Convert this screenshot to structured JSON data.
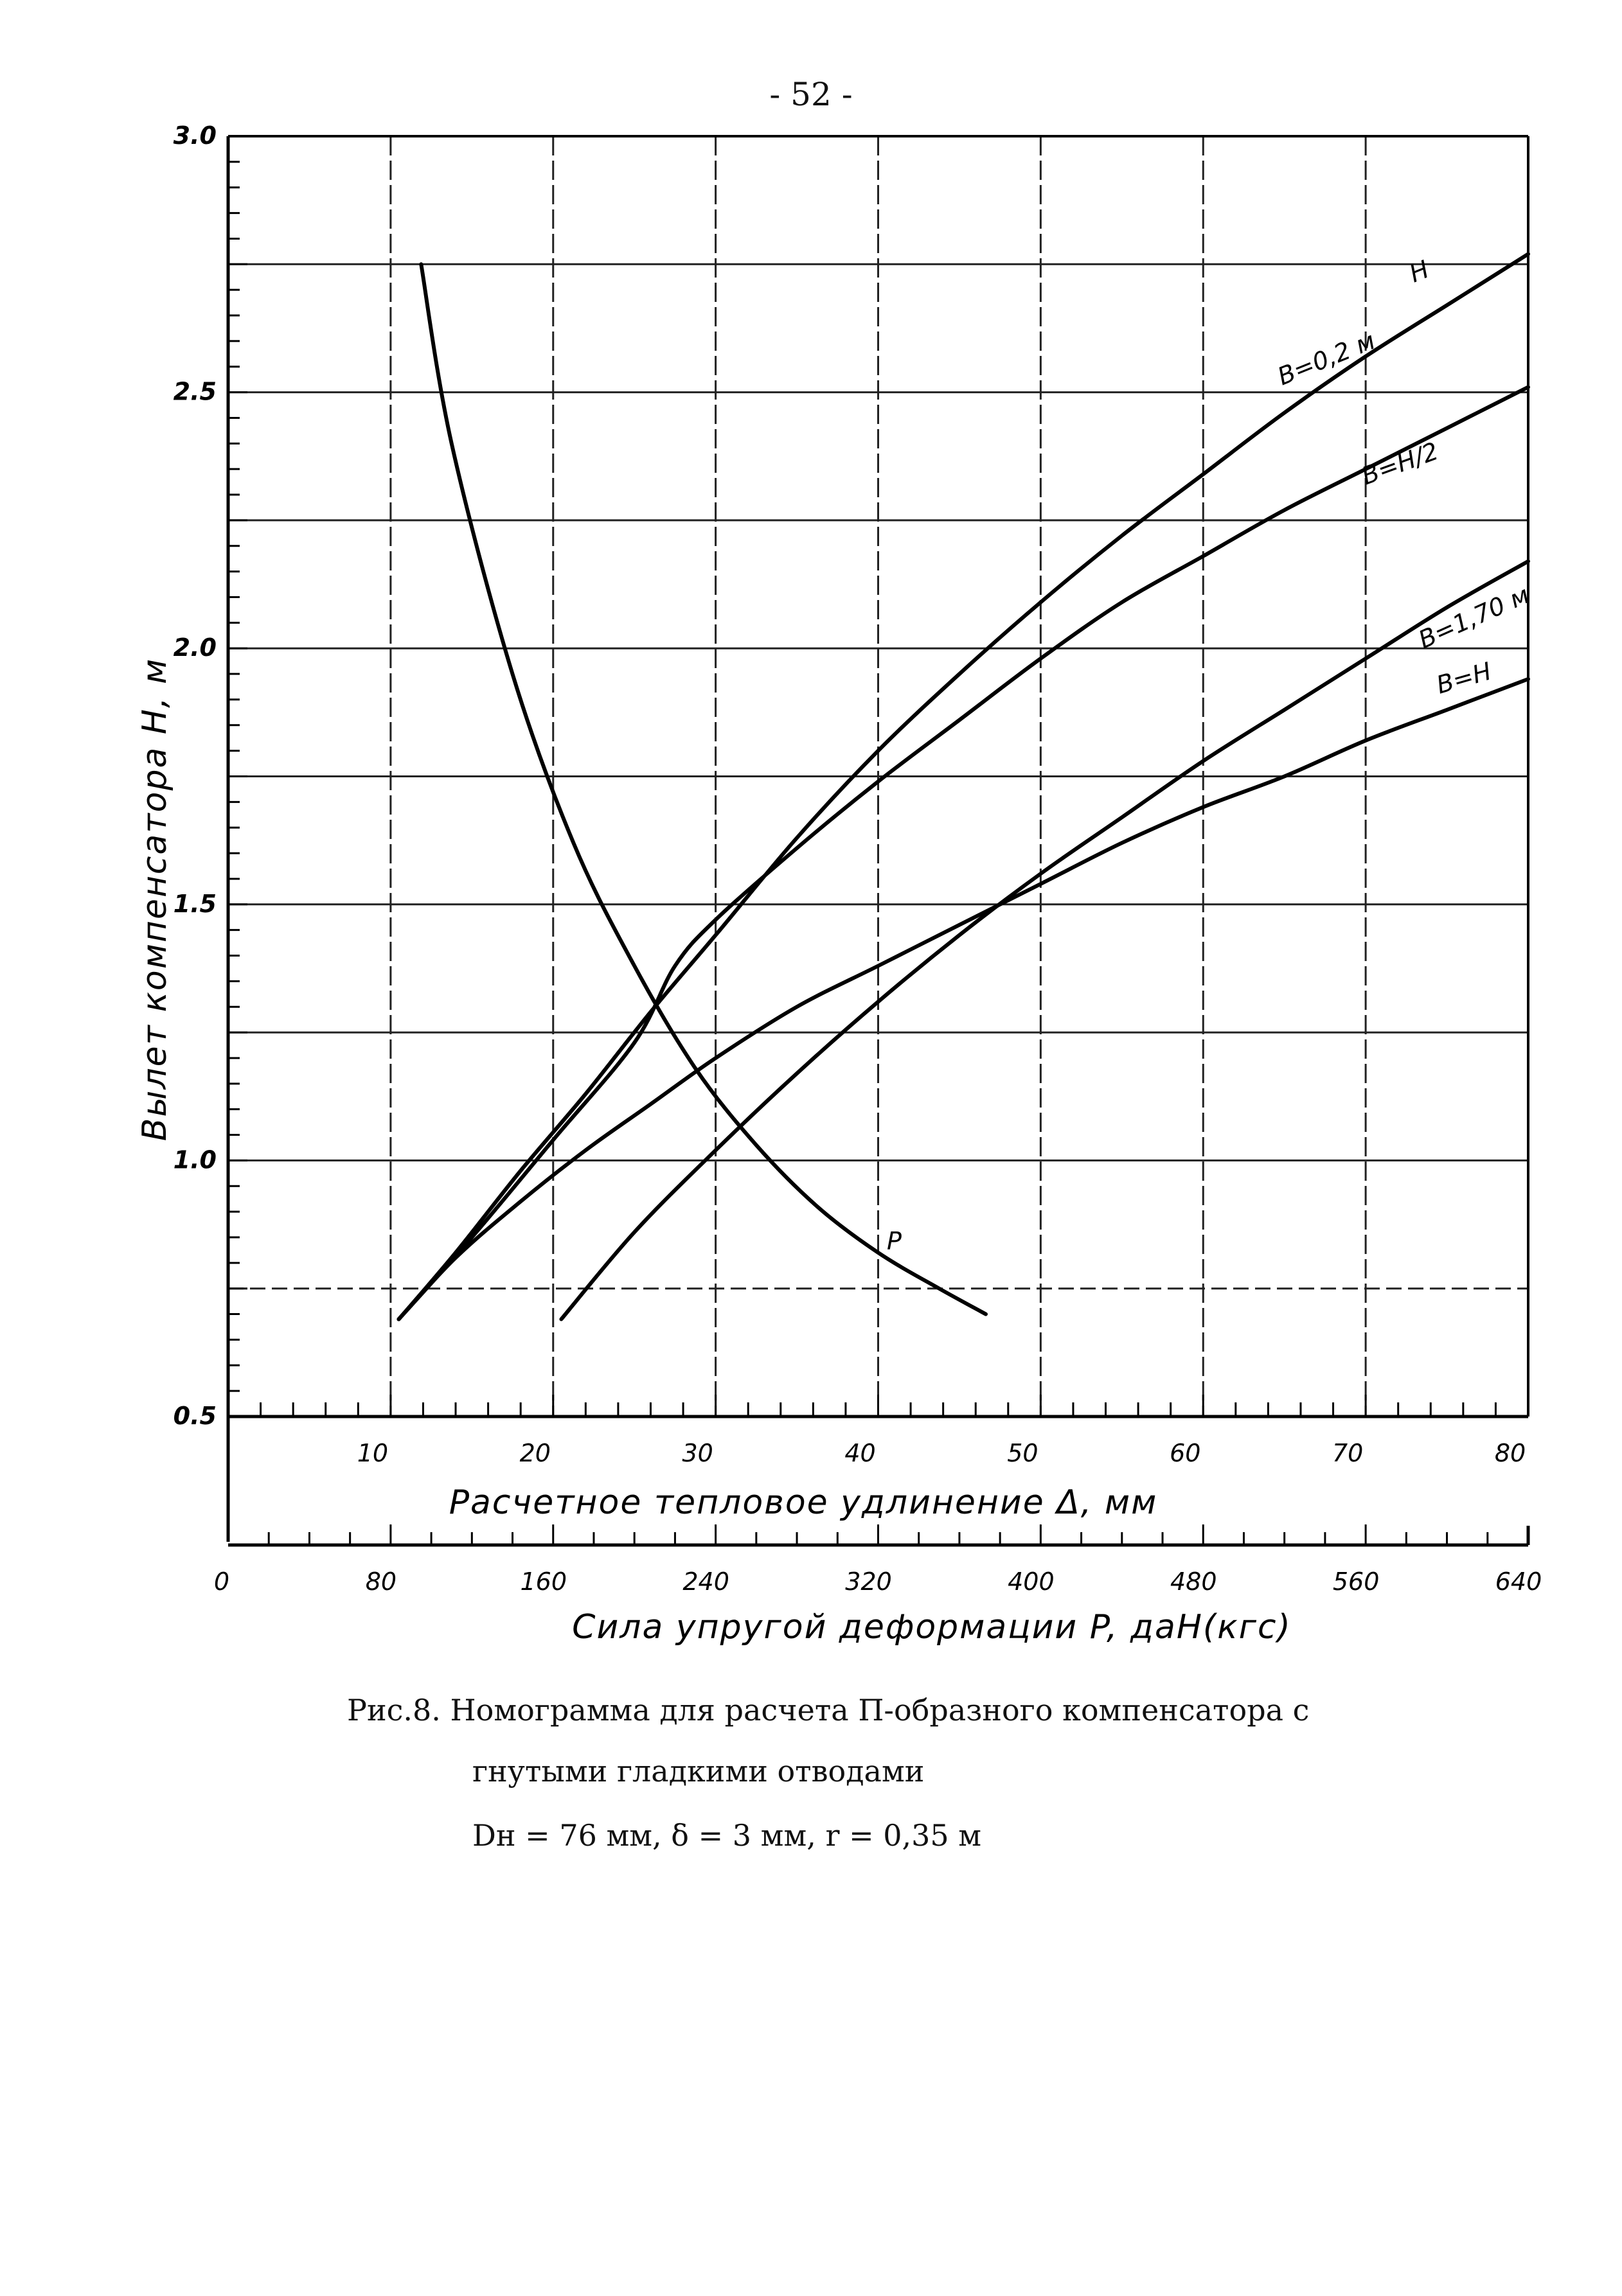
{
  "page_number": "- 52 -",
  "caption": {
    "line1": "Рис.8. Номограмма для расчета П-образного компенсатора с",
    "line2": "гнутыми гладкими отводами",
    "line3": "Dн = 76 мм,  δ = 3 мм,  r = 0,35 м"
  },
  "chart_data": {
    "type": "line",
    "ylabel": "Вылет компенсатора H, м",
    "xlabel": "Расчетное тепловое удлинение Δ, мм",
    "x2label": "Сила упругой деформации P, даН(кгс)",
    "ylim": [
      0.5,
      3.0
    ],
    "xlim": [
      0,
      80
    ],
    "x2lim": [
      0,
      640
    ],
    "y_ticks": [
      "0.5",
      "1.0",
      "1.5",
      "2.0",
      "2.5",
      "3.0"
    ],
    "x_ticks": [
      "10",
      "20",
      "30",
      "40",
      "50",
      "60",
      "70",
      "80"
    ],
    "x2_ticks": [
      "0",
      "80",
      "160",
      "240",
      "320",
      "400",
      "480",
      "560",
      "640"
    ],
    "grid": true,
    "series": [
      {
        "name": "B=0,2 м",
        "axis": "delta",
        "x": [
          10.5,
          14,
          18,
          22,
          26,
          30,
          35,
          40,
          45,
          50,
          55,
          60,
          65,
          70,
          75,
          80
        ],
        "y": [
          0.69,
          0.82,
          0.98,
          1.13,
          1.29,
          1.44,
          1.63,
          1.8,
          1.95,
          2.09,
          2.22,
          2.34,
          2.46,
          2.57,
          2.67,
          2.77
        ]
      },
      {
        "name": "B=H/2",
        "axis": "delta",
        "x": [
          10.5,
          15,
          20,
          25,
          27.5,
          30,
          35,
          40,
          45,
          50,
          55,
          60,
          65,
          70,
          75,
          80
        ],
        "y": [
          0.69,
          0.85,
          1.04,
          1.23,
          1.38,
          1.47,
          1.61,
          1.74,
          1.86,
          1.98,
          2.09,
          2.18,
          2.27,
          2.35,
          2.43,
          2.51
        ]
      },
      {
        "name": "B=1,70 м",
        "axis": "delta",
        "x": [
          20.5,
          25,
          30,
          35,
          40,
          45,
          50,
          55,
          60,
          65,
          70,
          75,
          80
        ],
        "y": [
          0.69,
          0.86,
          1.02,
          1.17,
          1.31,
          1.44,
          1.56,
          1.67,
          1.78,
          1.88,
          1.98,
          2.08,
          2.17
        ]
      },
      {
        "name": "B=H",
        "axis": "delta",
        "x": [
          10.5,
          14,
          18,
          22,
          26,
          30,
          35,
          40,
          45,
          50,
          55,
          60,
          65,
          70,
          75,
          80
        ],
        "y": [
          0.69,
          0.81,
          0.92,
          1.02,
          1.11,
          1.2,
          1.3,
          1.38,
          1.46,
          1.54,
          1.62,
          1.69,
          1.75,
          1.82,
          1.88,
          1.94
        ]
      },
      {
        "name": "P",
        "axis": "force",
        "x": [
          95,
          110,
          140,
          170,
          200,
          230,
          260,
          290,
          320,
          350,
          373
        ],
        "y": [
          2.75,
          2.4,
          1.95,
          1.62,
          1.38,
          1.18,
          1.03,
          0.91,
          0.82,
          0.75,
          0.7
        ]
      }
    ],
    "annotations": [
      "H",
      "B=0,2 м",
      "B=H/2",
      "B=1,70 м",
      "B=H",
      "P"
    ]
  }
}
